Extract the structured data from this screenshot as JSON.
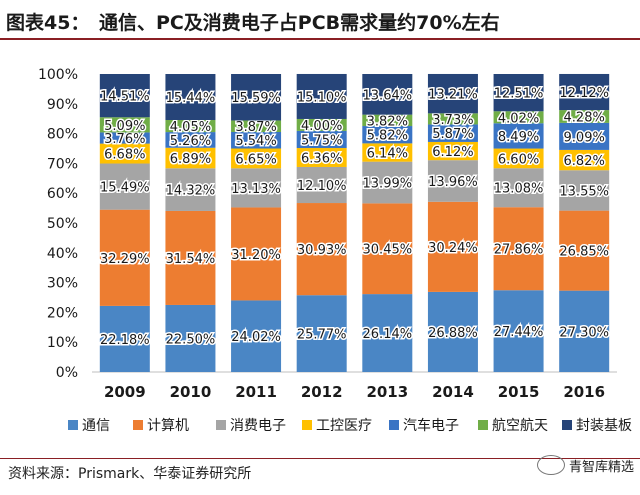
{
  "title": "图表45：　通信、PC及消费电子占PCB需求量约70%左右",
  "source": "资料来源：Prismark、华泰证券研究所",
  "watermark": "青智库精选",
  "chart_data": {
    "type": "bar",
    "stacked": true,
    "categories": [
      "2009",
      "2010",
      "2011",
      "2012",
      "2013",
      "2014",
      "2015",
      "2016"
    ],
    "ylim": [
      0,
      100
    ],
    "yticks": [
      "0%",
      "10%",
      "20%",
      "30%",
      "40%",
      "50%",
      "60%",
      "70%",
      "80%",
      "90%",
      "100%"
    ],
    "legend_position": "bottom",
    "series": [
      {
        "name": "通信",
        "color": "#4a86c5",
        "values": [
          22.18,
          22.5,
          24.02,
          25.77,
          26.14,
          26.88,
          27.44,
          27.3
        ],
        "labels": [
          "22.18%",
          "22.50%",
          "24.02%",
          "25.77%",
          "26.14%",
          "26.88%",
          "27.44%",
          "27.30%"
        ]
      },
      {
        "name": "计算机",
        "color": "#ed7d31",
        "values": [
          32.29,
          31.54,
          31.2,
          30.93,
          30.45,
          30.24,
          27.86,
          26.85
        ],
        "labels": [
          "32.29%",
          "31.54%",
          "31.20%",
          "30.93%",
          "30.45%",
          "30.24%",
          "27.86%",
          "26.85%"
        ]
      },
      {
        "name": "消费电子",
        "color": "#a5a5a5",
        "values": [
          15.49,
          14.32,
          13.13,
          12.1,
          13.99,
          13.96,
          13.08,
          13.55
        ],
        "labels": [
          "15.49%",
          "14.32%",
          "13.13%",
          "12.10%",
          "13.99%",
          "13.96%",
          "13.08%",
          "13.55%"
        ]
      },
      {
        "name": "工控医疗",
        "color": "#ffc000",
        "values": [
          6.68,
          6.89,
          6.65,
          6.36,
          6.14,
          6.12,
          6.6,
          6.82
        ],
        "labels": [
          "6.68%",
          "6.89%",
          "6.65%",
          "6.36%",
          "6.14%",
          "6.12%",
          "6.60%",
          "6.82%"
        ]
      },
      {
        "name": "汽车电子",
        "color": "#3a74c4",
        "values": [
          3.76,
          5.26,
          5.54,
          5.75,
          5.82,
          5.87,
          8.49,
          9.09
        ],
        "labels": [
          "3.76%",
          "5.26%",
          "5.54%",
          "5.75%",
          "5.82%",
          "5.87%",
          "8.49%",
          "9.09%"
        ]
      },
      {
        "name": "航空航天",
        "color": "#70ad47",
        "values": [
          5.09,
          4.05,
          3.87,
          4.0,
          3.82,
          3.73,
          4.02,
          4.28
        ],
        "labels": [
          "5.09%",
          "4.05%",
          "3.87%",
          "4.00%",
          "3.82%",
          "3.73%",
          "4.02%",
          "4.28%"
        ]
      },
      {
        "name": "封装基板",
        "color": "#264478",
        "values": [
          14.51,
          15.44,
          15.59,
          15.1,
          13.64,
          13.21,
          12.51,
          12.12
        ],
        "labels": [
          "14.51%",
          "15.44%",
          "15.59%",
          "15.10%",
          "13.64%",
          "13.21%",
          "12.51%",
          "12.12%"
        ]
      }
    ]
  }
}
